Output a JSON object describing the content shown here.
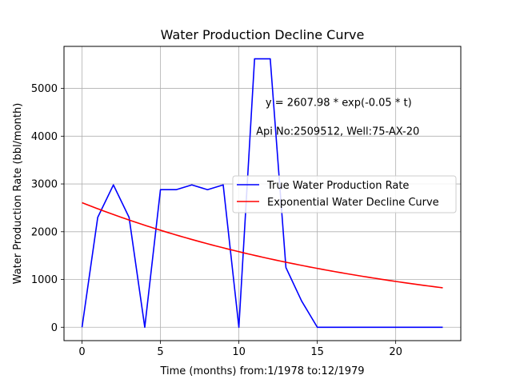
{
  "chart_data": {
    "type": "line",
    "title": "Water Production Decline Curve",
    "xlabel": "Time (months) from:1/1978 to:12/1979",
    "ylabel": "Water Production Rate (bbl/month)",
    "xlim": [
      -1.15,
      24.15
    ],
    "ylim": [
      -280,
      5880
    ],
    "x_ticks": [
      0,
      5,
      10,
      15,
      20
    ],
    "y_ticks": [
      0,
      1000,
      2000,
      3000,
      4000,
      5000
    ],
    "grid": true,
    "legend_position": "center-right",
    "annotations": [
      {
        "text": "y = 2607.98 * exp(-0.05 * t)",
        "x": 11.7,
        "y": 4630
      },
      {
        "text": "Api No:2509512, Well:75-AX-20",
        "x": 11.1,
        "y": 4030
      }
    ],
    "series": [
      {
        "name": "True Water Production Rate",
        "color": "#0000ff",
        "x": [
          0,
          1,
          2,
          3,
          4,
          5,
          6,
          7,
          8,
          9,
          10,
          11,
          12,
          13,
          14,
          15,
          16,
          17,
          18,
          19,
          20,
          21,
          22,
          23
        ],
        "values": [
          0,
          2300,
          2980,
          2300,
          0,
          2880,
          2880,
          2980,
          2880,
          2980,
          0,
          5620,
          5620,
          1250,
          550,
          0,
          0,
          0,
          0,
          0,
          0,
          0,
          0,
          0
        ]
      },
      {
        "name": "Exponential Water Decline Curve",
        "color": "#ff0000",
        "model": {
          "a": 2607.98,
          "b": -0.05,
          "t_start": 0,
          "t_end": 23
        }
      }
    ]
  }
}
